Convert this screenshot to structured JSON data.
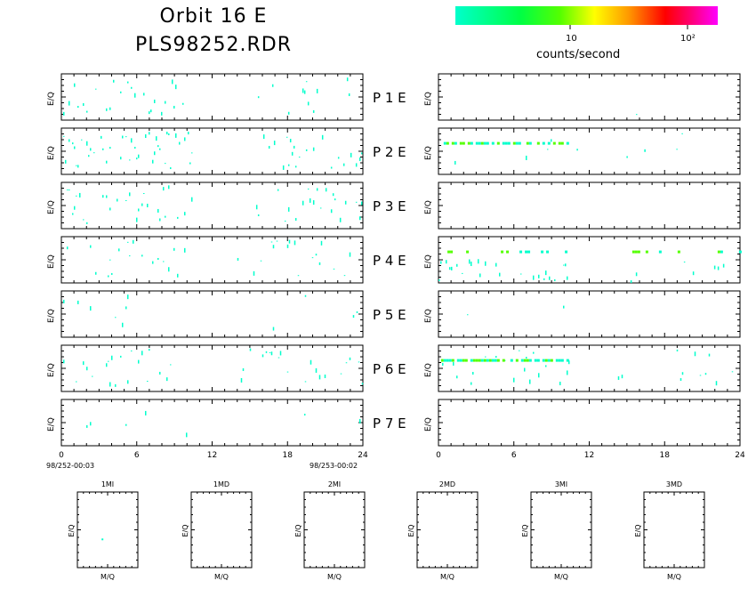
{
  "title": "Orbit 16 E",
  "subtitle": "PLS98252.RDR",
  "colorbar": {
    "ticks": [
      "10",
      "10²"
    ],
    "label": "counts/second",
    "colors": [
      "#00ffcc",
      "#00ff44",
      "#55ff00",
      "#ffff00",
      "#ff9900",
      "#ff0000",
      "#ff0077",
      "#ff00ff"
    ]
  },
  "panel_labels": [
    "P 1 E",
    "P 2 E",
    "P 3 E",
    "P 4 E",
    "P 5 E",
    "P 6 E",
    "P 7 E"
  ],
  "ylabel": "E/Q",
  "x_ticks": [
    "0",
    "6",
    "12",
    "18",
    "24"
  ],
  "left_time_start": "98/252-00:03",
  "left_time_end": "98/253-00:02",
  "small_panels": {
    "titles": [
      "1MI",
      "1MD",
      "2MI",
      "2MD",
      "3MI",
      "3MD"
    ],
    "xlabel": "M/Q",
    "ylabel": "E/Q"
  },
  "chart_data": [
    {
      "type": "heatmap",
      "title": "Orbit 16 E",
      "xlabel": "",
      "ylabel": "E/Q",
      "xlim": [
        0,
        24
      ],
      "x_ticks": [
        0,
        6,
        12,
        18,
        24
      ],
      "panels": [
        {
          "name": "P 1 E",
          "left_activity": [
            [
              0,
              10.5,
              0.35
            ],
            [
              15.5,
              24,
              0.22
            ]
          ],
          "right_activity": [
            [
              0,
              24,
              0.01
            ]
          ],
          "right_bands": []
        },
        {
          "name": "P 2 E",
          "left_activity": [
            [
              0,
              10.5,
              0.55
            ],
            [
              15.5,
              24,
              0.45
            ]
          ],
          "right_activity": [
            [
              0,
              10.5,
              0.06
            ],
            [
              11,
              20,
              0.03
            ]
          ],
          "right_bands": [
            [
              0.2,
              10.3,
              0.65
            ]
          ]
        },
        {
          "name": "P 3 E",
          "left_activity": [
            [
              0,
              10.5,
              0.45
            ],
            [
              15.5,
              24,
              0.3
            ]
          ],
          "right_activity": [],
          "right_bands": []
        },
        {
          "name": "P 4 E",
          "left_activity": [
            [
              0,
              10.5,
              0.25
            ],
            [
              14,
              24,
              0.2
            ]
          ],
          "right_activity": [
            [
              0,
              10.3,
              0.35
            ],
            [
              15,
              24,
              0.2
            ]
          ],
          "right_bands": [
            [
              0.5,
              10.2,
              0.15
            ],
            [
              15,
              24,
              0.15
            ]
          ]
        },
        {
          "name": "P 5 E",
          "left_activity": [
            [
              0,
              10.5,
              0.08
            ],
            [
              14,
              24,
              0.03
            ]
          ],
          "right_activity": [
            [
              0,
              10,
              0.02
            ]
          ],
          "right_bands": []
        },
        {
          "name": "P 6 E",
          "left_activity": [
            [
              0,
              10.5,
              0.3
            ],
            [
              14,
              24,
              0.28
            ]
          ],
          "right_activity": [
            [
              0,
              10.5,
              0.25
            ],
            [
              14,
              24,
              0.12
            ]
          ],
          "right_bands": [
            [
              0.2,
              10.2,
              0.8
            ]
          ]
        },
        {
          "name": "P 7 E",
          "left_activity": [
            [
              0,
              10.5,
              0.12
            ],
            [
              15.5,
              24,
              0.08
            ]
          ],
          "right_activity": [
            [
              0,
              24,
              0.015
            ]
          ],
          "right_bands": []
        }
      ]
    },
    {
      "type": "scatter",
      "panels": [
        {
          "title": "1MI",
          "xlabel": "M/Q",
          "ylabel": "E/Q",
          "points": [
            [
              0.4,
              0.15
            ]
          ]
        },
        {
          "title": "1MD",
          "xlabel": "M/Q",
          "ylabel": "E/Q",
          "points": []
        },
        {
          "title": "2MI",
          "xlabel": "M/Q",
          "ylabel": "E/Q",
          "points": []
        },
        {
          "title": "2MD",
          "xlabel": "M/Q",
          "ylabel": "E/Q",
          "points": []
        },
        {
          "title": "3MI",
          "xlabel": "M/Q",
          "ylabel": "E/Q",
          "points": []
        },
        {
          "title": "3MD",
          "xlabel": "M/Q",
          "ylabel": "E/Q",
          "points": []
        }
      ]
    }
  ]
}
